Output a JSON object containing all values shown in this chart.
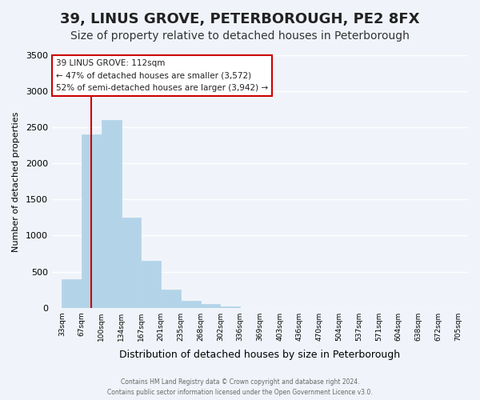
{
  "title": "39, LINUS GROVE, PETERBOROUGH, PE2 8FX",
  "subtitle": "Size of property relative to detached houses in Peterborough",
  "xlabel": "Distribution of detached houses by size in Peterborough",
  "ylabel": "Number of detached properties",
  "bar_values": [
    400,
    2400,
    2600,
    1250,
    650,
    250,
    100,
    50,
    20,
    0,
    0,
    0,
    0,
    0,
    0,
    0,
    0,
    0,
    0,
    0
  ],
  "bin_labels": [
    "33sqm",
    "67sqm",
    "100sqm",
    "134sqm",
    "167sqm",
    "201sqm",
    "235sqm",
    "268sqm",
    "302sqm",
    "336sqm",
    "369sqm",
    "403sqm",
    "436sqm",
    "470sqm",
    "504sqm",
    "537sqm",
    "571sqm",
    "604sqm",
    "638sqm",
    "672sqm",
    "705sqm"
  ],
  "bar_color": "#b3d4e8",
  "bar_edge_color": "#b3d4e8",
  "vline_color": "#cc0000",
  "vline_x": 1.5,
  "ylim": [
    0,
    3500
  ],
  "annotation_title": "39 LINUS GROVE: 112sqm",
  "annotation_line1": "← 47% of detached houses are smaller (3,572)",
  "annotation_line2": "52% of semi-detached houses are larger (3,942) →",
  "annotation_box_color": "#ffffff",
  "annotation_box_edge": "#cc0000",
  "footer_line1": "Contains HM Land Registry data © Crown copyright and database right 2024.",
  "footer_line2": "Contains public sector information licensed under the Open Government Licence v3.0.",
  "background_color": "#f0f4fa",
  "grid_color": "#ffffff",
  "title_fontsize": 13,
  "subtitle_fontsize": 10,
  "num_bins": 20
}
